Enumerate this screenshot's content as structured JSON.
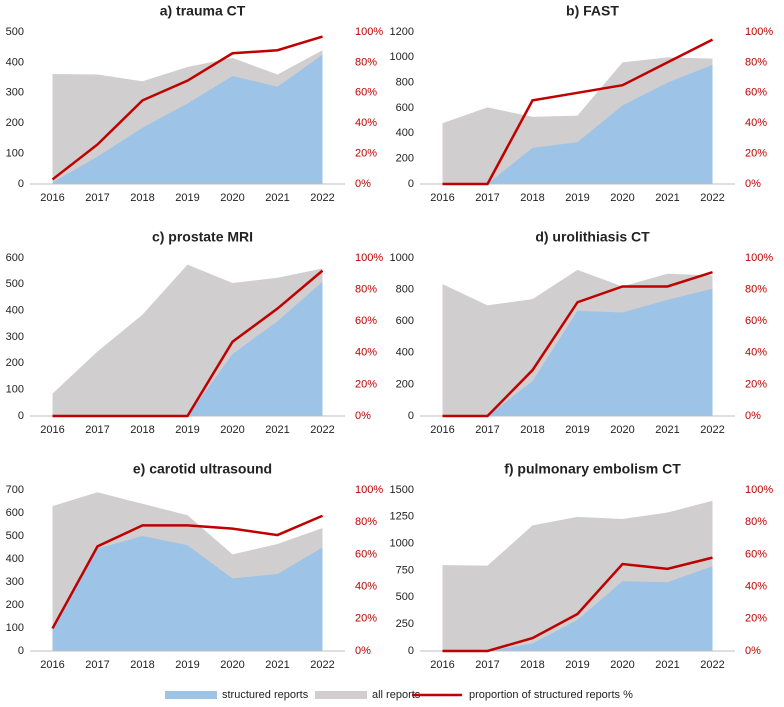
{
  "chart_data": [
    {
      "type": "area",
      "title": "a) trauma CT",
      "categories": [
        "2016",
        "2017",
        "2018",
        "2019",
        "2020",
        "2021",
        "2022"
      ],
      "series": [
        {
          "name": "structured reports",
          "color": "#9dc3e6",
          "values": [
            5,
            90,
            185,
            265,
            355,
            320,
            425
          ]
        },
        {
          "name": "all reports",
          "color": "#d0cece",
          "values": [
            362,
            360,
            338,
            385,
            415,
            360,
            440
          ]
        },
        {
          "name": "proportion of structured reports %",
          "color": "#c00000",
          "axis": "y2",
          "values": [
            3,
            26,
            55,
            68,
            86,
            88,
            97
          ]
        }
      ],
      "ylim": [
        0,
        500
      ],
      "yticks": [
        0,
        100,
        200,
        300,
        400,
        500
      ],
      "y2lim": [
        0,
        100
      ],
      "y2ticks": [
        {
          "value": 0,
          "label": "0%"
        },
        {
          "value": 20,
          "label": "20%"
        },
        {
          "value": 40,
          "label": "40%"
        },
        {
          "value": 60,
          "label": "60%"
        },
        {
          "value": 80,
          "label": "80%"
        },
        {
          "value": 100,
          "label": "100%"
        }
      ]
    },
    {
      "type": "area",
      "title": "b) FAST",
      "categories": [
        "2016",
        "2017",
        "2018",
        "2019",
        "2020",
        "2021",
        "2022"
      ],
      "series": [
        {
          "name": "structured reports",
          "color": "#9dc3e6",
          "values": [
            0,
            0,
            285,
            330,
            620,
            800,
            940
          ]
        },
        {
          "name": "all reports",
          "color": "#d0cece",
          "values": [
            480,
            605,
            530,
            540,
            960,
            1000,
            990
          ]
        },
        {
          "name": "proportion of structured reports %",
          "color": "#c00000",
          "axis": "y2",
          "values": [
            0,
            0,
            55,
            60,
            65,
            80,
            95
          ]
        }
      ],
      "ylim": [
        0,
        1200
      ],
      "yticks": [
        0,
        200,
        400,
        600,
        800,
        1000,
        1200
      ],
      "y2lim": [
        0,
        100
      ],
      "y2ticks": [
        {
          "value": 0,
          "label": "0%"
        },
        {
          "value": 20,
          "label": "20%"
        },
        {
          "value": 40,
          "label": "40%"
        },
        {
          "value": 60,
          "label": "60%"
        },
        {
          "value": 80,
          "label": "80%"
        },
        {
          "value": 100,
          "label": "100%"
        }
      ]
    },
    {
      "type": "area",
      "title": "c) prostate MRI",
      "categories": [
        "2016",
        "2017",
        "2018",
        "2019",
        "2020",
        "2021",
        "2022"
      ],
      "series": [
        {
          "name": "structured reports",
          "color": "#9dc3e6",
          "values": [
            0,
            0,
            0,
            0,
            235,
            360,
            510
          ]
        },
        {
          "name": "all reports",
          "color": "#d0cece",
          "values": [
            85,
            245,
            385,
            575,
            505,
            525,
            560
          ]
        },
        {
          "name": "proportion of structured reports %",
          "color": "#c00000",
          "axis": "y2",
          "values": [
            0,
            0,
            0,
            0,
            47,
            68,
            92
          ]
        }
      ],
      "ylim": [
        0,
        600
      ],
      "yticks": [
        0,
        100,
        200,
        300,
        400,
        500,
        600
      ],
      "y2lim": [
        0,
        100
      ],
      "y2ticks": [
        {
          "value": 0,
          "label": "0%"
        },
        {
          "value": 20,
          "label": "20%"
        },
        {
          "value": 40,
          "label": "40%"
        },
        {
          "value": 60,
          "label": "60%"
        },
        {
          "value": 80,
          "label": "80%"
        },
        {
          "value": 100,
          "label": "100%"
        }
      ]
    },
    {
      "type": "area",
      "title": "d) urolithiasis CT",
      "categories": [
        "2016",
        "2017",
        "2018",
        "2019",
        "2020",
        "2021",
        "2022"
      ],
      "series": [
        {
          "name": "structured reports",
          "color": "#9dc3e6",
          "values": [
            0,
            0,
            220,
            665,
            655,
            735,
            805
          ]
        },
        {
          "name": "all reports",
          "color": "#d0cece",
          "values": [
            835,
            700,
            740,
            925,
            820,
            900,
            890
          ]
        },
        {
          "name": "proportion of structured reports %",
          "color": "#c00000",
          "axis": "y2",
          "values": [
            0,
            0,
            29,
            72,
            82,
            82,
            91
          ]
        }
      ],
      "ylim": [
        0,
        1000
      ],
      "yticks": [
        0,
        200,
        400,
        600,
        800,
        1000
      ],
      "y2lim": [
        0,
        100
      ],
      "y2ticks": [
        {
          "value": 0,
          "label": "0%"
        },
        {
          "value": 20,
          "label": "20%"
        },
        {
          "value": 40,
          "label": "40%"
        },
        {
          "value": 60,
          "label": "60%"
        },
        {
          "value": 80,
          "label": "80%"
        },
        {
          "value": 100,
          "label": "100%"
        }
      ]
    },
    {
      "type": "area",
      "title": "e) carotid ultrasound",
      "categories": [
        "2016",
        "2017",
        "2018",
        "2019",
        "2020",
        "2021",
        "2022"
      ],
      "series": [
        {
          "name": "structured reports",
          "color": "#9dc3e6",
          "values": [
            95,
            445,
            500,
            460,
            315,
            335,
            450
          ]
        },
        {
          "name": "all reports",
          "color": "#d0cece",
          "values": [
            630,
            690,
            640,
            590,
            420,
            465,
            535
          ]
        },
        {
          "name": "proportion of structured reports %",
          "color": "#c00000",
          "axis": "y2",
          "values": [
            14,
            65,
            78,
            78,
            76,
            72,
            84
          ]
        }
      ],
      "ylim": [
        0,
        700
      ],
      "yticks": [
        0,
        100,
        200,
        300,
        400,
        500,
        600,
        700
      ],
      "y2lim": [
        0,
        100
      ],
      "y2ticks": [
        {
          "value": 0,
          "label": "0%"
        },
        {
          "value": 20,
          "label": "20%"
        },
        {
          "value": 40,
          "label": "40%"
        },
        {
          "value": 60,
          "label": "60%"
        },
        {
          "value": 80,
          "label": "80%"
        },
        {
          "value": 100,
          "label": "100%"
        }
      ]
    },
    {
      "type": "area",
      "title": "f) pulmonary embolism CT",
      "categories": [
        "2016",
        "2017",
        "2018",
        "2019",
        "2020",
        "2021",
        "2022"
      ],
      "series": [
        {
          "name": "structured reports",
          "color": "#9dc3e6",
          "values": [
            0,
            0,
            70,
            290,
            650,
            640,
            790
          ]
        },
        {
          "name": "all reports",
          "color": "#d0cece",
          "values": [
            800,
            795,
            1170,
            1250,
            1230,
            1290,
            1400
          ]
        },
        {
          "name": "proportion of structured reports %",
          "color": "#c00000",
          "axis": "y2",
          "values": [
            0,
            0,
            8,
            23,
            54,
            51,
            58
          ]
        }
      ],
      "ylim": [
        0,
        1500
      ],
      "yticks": [
        0,
        250,
        500,
        750,
        1000,
        1250,
        1500
      ],
      "y2lim": [
        0,
        100
      ],
      "y2ticks": [
        {
          "value": 0,
          "label": "0%"
        },
        {
          "value": 20,
          "label": "20%"
        },
        {
          "value": 40,
          "label": "40%"
        },
        {
          "value": 60,
          "label": "60%"
        },
        {
          "value": 80,
          "label": "80%"
        },
        {
          "value": 100,
          "label": "100%"
        }
      ]
    }
  ]
}
